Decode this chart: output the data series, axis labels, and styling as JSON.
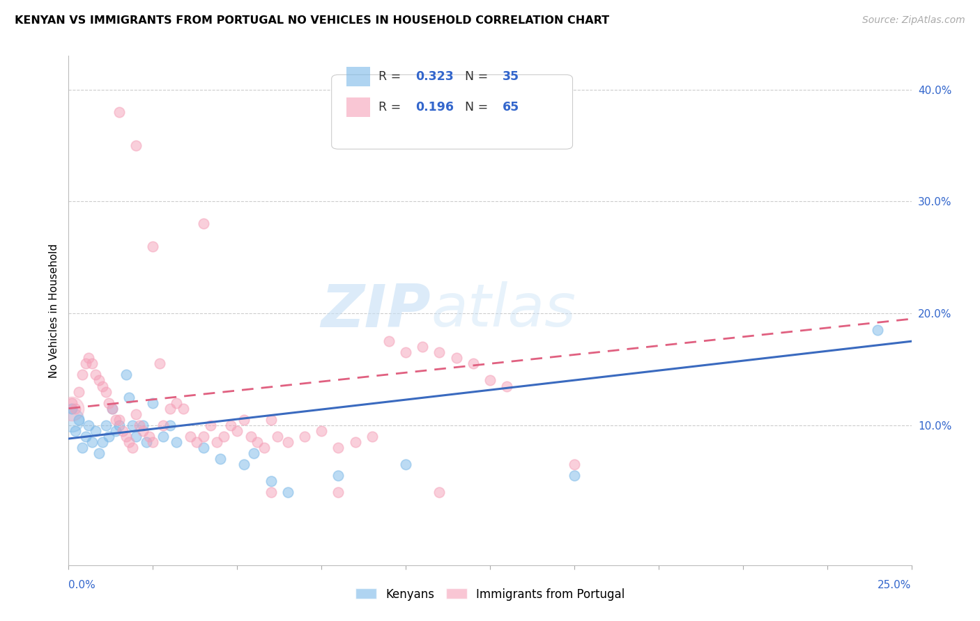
{
  "title": "KENYAN VS IMMIGRANTS FROM PORTUGAL NO VEHICLES IN HOUSEHOLD CORRELATION CHART",
  "source": "Source: ZipAtlas.com",
  "ylabel": "No Vehicles in Household",
  "blue_color": "#7ab8e8",
  "pink_color": "#f5a0b8",
  "blue_line_color": "#3a6abf",
  "pink_line_color": "#e06080",
  "watermark": "ZIPatlas",
  "xlim": [
    0.0,
    0.25
  ],
  "ylim": [
    -0.025,
    0.43
  ],
  "ytick_vals": [
    0.1,
    0.2,
    0.3,
    0.4
  ],
  "ytick_labels": [
    "10.0%",
    "20.0%",
    "30.0%",
    "40.0%"
  ],
  "blue_R": 0.323,
  "blue_N": 35,
  "pink_R": 0.196,
  "pink_N": 65,
  "blue_points": [
    [
      0.001,
      0.115
    ],
    [
      0.002,
      0.095
    ],
    [
      0.003,
      0.105
    ],
    [
      0.004,
      0.08
    ],
    [
      0.005,
      0.09
    ],
    [
      0.006,
      0.1
    ],
    [
      0.007,
      0.085
    ],
    [
      0.008,
      0.095
    ],
    [
      0.009,
      0.075
    ],
    [
      0.01,
      0.085
    ],
    [
      0.011,
      0.1
    ],
    [
      0.012,
      0.09
    ],
    [
      0.013,
      0.115
    ],
    [
      0.014,
      0.095
    ],
    [
      0.015,
      0.1
    ],
    [
      0.017,
      0.145
    ],
    [
      0.018,
      0.125
    ],
    [
      0.019,
      0.1
    ],
    [
      0.02,
      0.09
    ],
    [
      0.022,
      0.1
    ],
    [
      0.023,
      0.085
    ],
    [
      0.025,
      0.12
    ],
    [
      0.028,
      0.09
    ],
    [
      0.03,
      0.1
    ],
    [
      0.032,
      0.085
    ],
    [
      0.04,
      0.08
    ],
    [
      0.045,
      0.07
    ],
    [
      0.052,
      0.065
    ],
    [
      0.055,
      0.075
    ],
    [
      0.06,
      0.05
    ],
    [
      0.065,
      0.04
    ],
    [
      0.08,
      0.055
    ],
    [
      0.1,
      0.065
    ],
    [
      0.15,
      0.055
    ],
    [
      0.24,
      0.185
    ]
  ],
  "pink_points": [
    [
      0.001,
      0.12
    ],
    [
      0.002,
      0.115
    ],
    [
      0.003,
      0.13
    ],
    [
      0.004,
      0.145
    ],
    [
      0.005,
      0.155
    ],
    [
      0.006,
      0.16
    ],
    [
      0.007,
      0.155
    ],
    [
      0.008,
      0.145
    ],
    [
      0.009,
      0.14
    ],
    [
      0.01,
      0.135
    ],
    [
      0.011,
      0.13
    ],
    [
      0.012,
      0.12
    ],
    [
      0.013,
      0.115
    ],
    [
      0.014,
      0.105
    ],
    [
      0.015,
      0.105
    ],
    [
      0.016,
      0.095
    ],
    [
      0.017,
      0.09
    ],
    [
      0.018,
      0.085
    ],
    [
      0.019,
      0.08
    ],
    [
      0.02,
      0.11
    ],
    [
      0.021,
      0.1
    ],
    [
      0.022,
      0.095
    ],
    [
      0.024,
      0.09
    ],
    [
      0.025,
      0.085
    ],
    [
      0.027,
      0.155
    ],
    [
      0.028,
      0.1
    ],
    [
      0.03,
      0.115
    ],
    [
      0.032,
      0.12
    ],
    [
      0.034,
      0.115
    ],
    [
      0.036,
      0.09
    ],
    [
      0.038,
      0.085
    ],
    [
      0.04,
      0.09
    ],
    [
      0.042,
      0.1
    ],
    [
      0.044,
      0.085
    ],
    [
      0.046,
      0.09
    ],
    [
      0.048,
      0.1
    ],
    [
      0.05,
      0.095
    ],
    [
      0.052,
      0.105
    ],
    [
      0.054,
      0.09
    ],
    [
      0.056,
      0.085
    ],
    [
      0.058,
      0.08
    ],
    [
      0.06,
      0.105
    ],
    [
      0.062,
      0.09
    ],
    [
      0.065,
      0.085
    ],
    [
      0.07,
      0.09
    ],
    [
      0.075,
      0.095
    ],
    [
      0.08,
      0.08
    ],
    [
      0.085,
      0.085
    ],
    [
      0.09,
      0.09
    ],
    [
      0.095,
      0.175
    ],
    [
      0.1,
      0.165
    ],
    [
      0.105,
      0.17
    ],
    [
      0.11,
      0.165
    ],
    [
      0.115,
      0.16
    ],
    [
      0.12,
      0.155
    ],
    [
      0.125,
      0.14
    ],
    [
      0.13,
      0.135
    ],
    [
      0.02,
      0.35
    ],
    [
      0.04,
      0.28
    ],
    [
      0.015,
      0.38
    ],
    [
      0.025,
      0.26
    ],
    [
      0.06,
      0.04
    ],
    [
      0.08,
      0.04
    ],
    [
      0.15,
      0.065
    ],
    [
      0.11,
      0.04
    ]
  ],
  "big_blue_point": [
    0.001,
    0.105
  ],
  "big_pink_point": [
    0.001,
    0.115
  ]
}
